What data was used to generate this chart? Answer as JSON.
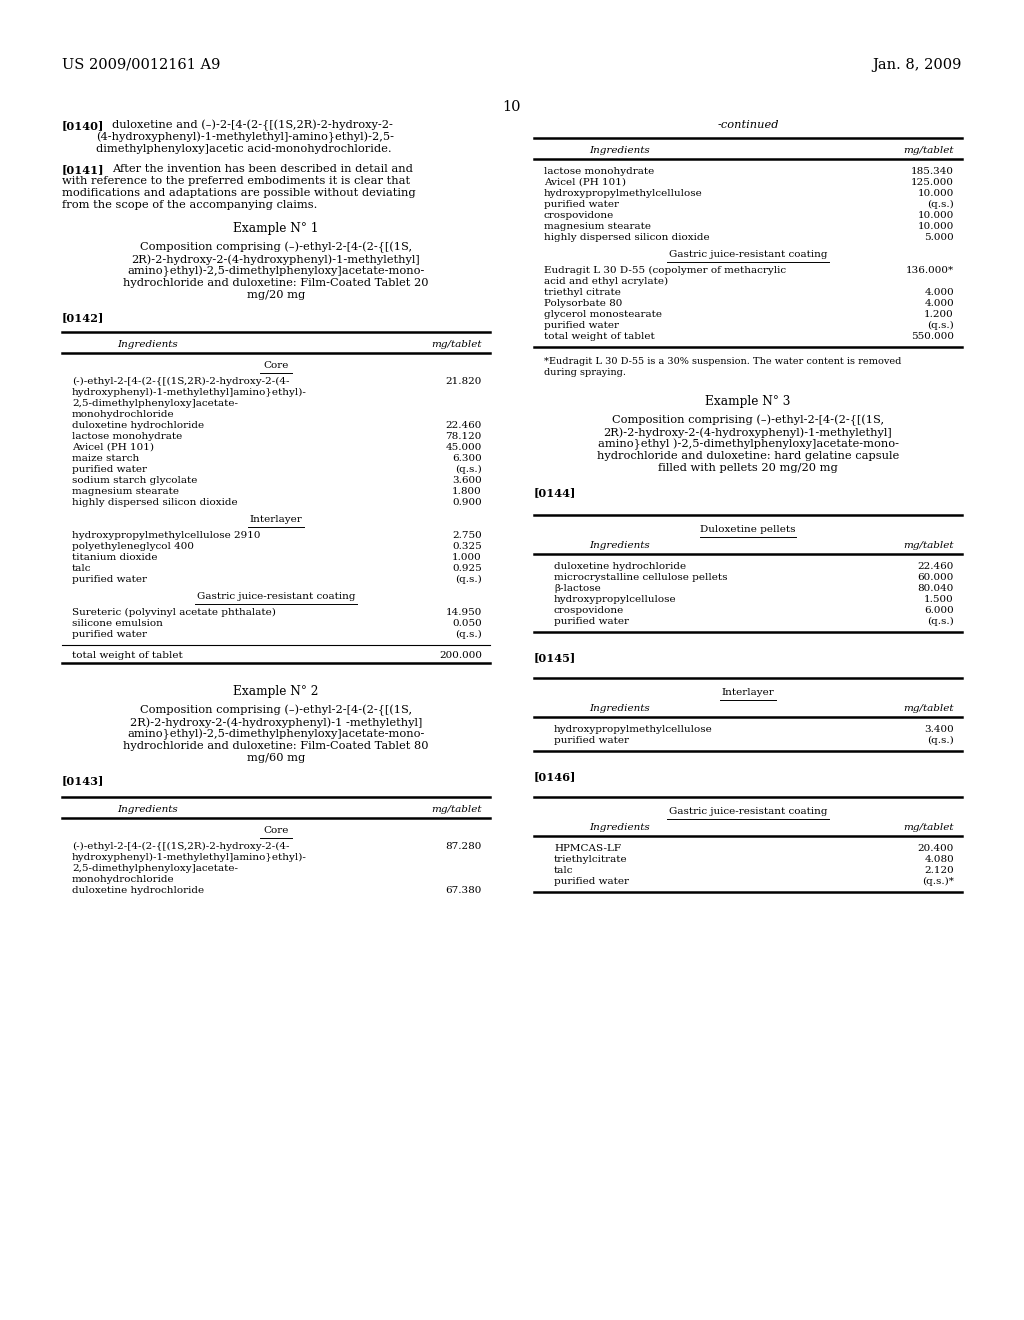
{
  "bg_color": "#ffffff",
  "header_left": "US 2009/0012161 A9",
  "header_right": "Jan. 8, 2009",
  "header_center": "10",
  "left_col": {
    "table1_rows": [
      [
        "(-)-ethyl-2-[4-(2-{[(1S,2R)-2-hydroxy-2-(4-\nhydroxyphenyl)-1-methylethyl]amino}ethyl)-\n2,5-dimethylphenyloxy]acetate-\nmonohydrochloride",
        "21.820"
      ],
      [
        "duloxetine hydrochloride",
        "22.460"
      ],
      [
        "lactose monohydrate",
        "78.120"
      ],
      [
        "Avicel (PH 101)",
        "45.000"
      ],
      [
        "maize starch",
        "6.300"
      ],
      [
        "purified water",
        "(q.s.)"
      ],
      [
        "sodium starch glycolate",
        "3.600"
      ],
      [
        "magnesium stearate",
        "1.800"
      ],
      [
        "highly dispersed silicon dioxide",
        "0.900"
      ]
    ],
    "table1_rows2": [
      [
        "hydroxypropylmethylcellulose 2910",
        "2.750"
      ],
      [
        "polyethyleneglycol 400",
        "0.325"
      ],
      [
        "titanium dioxide",
        "1.000"
      ],
      [
        "talc",
        "0.925"
      ],
      [
        "purified water",
        "(q.s.)"
      ]
    ],
    "table1_rows3": [
      [
        "Sureteric (polyvinyl acetate phthalate)",
        "14.950"
      ],
      [
        "silicone emulsion",
        "0.050"
      ],
      [
        "purified water",
        "(q.s.)"
      ]
    ],
    "table1_total": [
      "total weight of tablet",
      "200.000"
    ],
    "table2_rows": [
      [
        "(-)-ethyl-2-[4-(2-{[(1S,2R)-2-hydroxy-2-(4-\nhydroxyphenyl)-1-methylethyl]amino}ethyl)-\n2,5-dimethylphenyloxy]acetate-\nmonohydrochloride",
        "87.280"
      ],
      [
        "duloxetine hydrochloride",
        "67.380"
      ]
    ]
  },
  "right_col": {
    "table_cont_rows": [
      [
        "lactose monohydrate",
        "185.340"
      ],
      [
        "Avicel (PH 101)",
        "125.000"
      ],
      [
        "hydroxypropylmethylcellulose",
        "10.000"
      ],
      [
        "purified water",
        "(q.s.)"
      ],
      [
        "crospovidone",
        "10.000"
      ],
      [
        "magnesium stearate",
        "10.000"
      ],
      [
        "highly dispersed silicon dioxide",
        "5.000"
      ]
    ],
    "table_cont_rows2": [
      [
        "Eudragit L 30 D-55 (copolymer of methacrylic\nacid and ethyl acrylate)",
        "136.000*"
      ],
      [
        "triethyl citrate",
        "4.000"
      ],
      [
        "Polysorbate 80",
        "4.000"
      ],
      [
        "glycerol monostearate",
        "1.200"
      ],
      [
        "purified water",
        "(q.s.)"
      ],
      [
        "total weight of tablet",
        "550.000"
      ]
    ],
    "table3_rows": [
      [
        "duloxetine hydrochloride",
        "22.460"
      ],
      [
        "microcrystalline cellulose pellets",
        "60.000"
      ],
      [
        "β-lactose",
        "80.040"
      ],
      [
        "hydroxypropylcellulose",
        "1.500"
      ],
      [
        "crospovidone",
        "6.000"
      ],
      [
        "purified water",
        "(q.s.)"
      ]
    ],
    "table4_rows": [
      [
        "hydroxypropylmethylcellulose",
        "3.400"
      ],
      [
        "purified water",
        "(q.s.)"
      ]
    ],
    "table5_rows": [
      [
        "HPMCAS-LF",
        "20.400"
      ],
      [
        "triethylcitrate",
        "4.080"
      ],
      [
        "talc",
        "2.120"
      ],
      [
        "purified water",
        "(q.s.)*"
      ]
    ]
  }
}
